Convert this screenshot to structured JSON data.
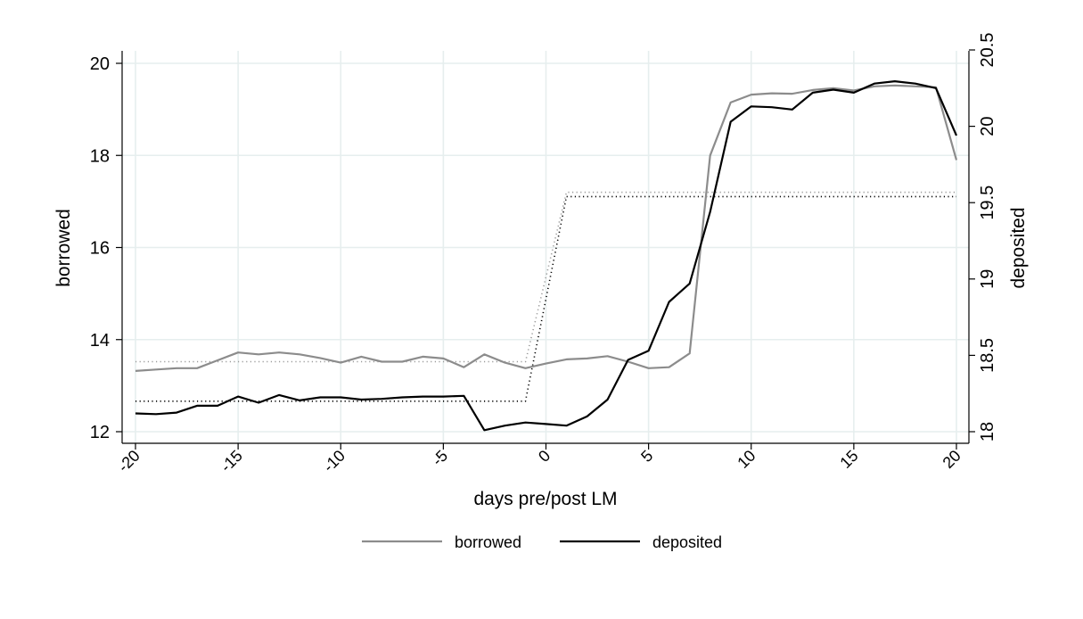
{
  "chart_data": {
    "type": "line",
    "title": "",
    "xlabel": "days pre/post LM",
    "ylabel_left": "borrowed",
    "ylabel_right": "deposited",
    "xlim": [
      -20,
      20
    ],
    "ylim_left": [
      12,
      20
    ],
    "ylim_right": [
      18,
      20.5
    ],
    "x_ticks": [
      -20,
      -15,
      -10,
      -5,
      0,
      5,
      10,
      15,
      20
    ],
    "x_tick_labels": [
      "-20",
      "-15",
      "-10",
      "-5",
      "0",
      "5",
      "10",
      "15",
      "20"
    ],
    "y_left_ticks": [
      12,
      14,
      16,
      18,
      20
    ],
    "y_left_tick_labels": [
      "12",
      "14",
      "16",
      "18",
      "20"
    ],
    "y_right_ticks": [
      18,
      18.5,
      19,
      19.5,
      20,
      20.5
    ],
    "y_right_tick_labels": [
      "18",
      "18.5",
      "19",
      "19.5",
      "20",
      "20.5"
    ],
    "grid": true,
    "legend_position": "bottom",
    "x": [
      -20,
      -19,
      -18,
      -17,
      -16,
      -15,
      -14,
      -13,
      -12,
      -11,
      -10,
      -9,
      -8,
      -7,
      -6,
      -5,
      -4,
      -3,
      -2,
      -1,
      0,
      1,
      2,
      3,
      4,
      5,
      6,
      7,
      8,
      9,
      10,
      11,
      12,
      13,
      14,
      15,
      16,
      17,
      18,
      19,
      20
    ],
    "series": [
      {
        "name": "borrowed",
        "axis": "left",
        "style": "solid",
        "color": "#8c8c8c",
        "values": [
          13.32,
          13.35,
          13.38,
          13.38,
          13.55,
          13.72,
          13.68,
          13.72,
          13.68,
          13.6,
          13.5,
          13.63,
          13.52,
          13.52,
          13.63,
          13.59,
          13.4,
          13.68,
          13.5,
          13.38,
          13.48,
          13.57,
          13.59,
          13.64,
          13.52,
          13.38,
          13.4,
          13.7,
          18.0,
          19.15,
          19.32,
          19.35,
          19.34,
          19.42,
          19.46,
          19.41,
          19.5,
          19.52,
          19.5,
          19.48,
          17.9
        ]
      },
      {
        "name": "deposited",
        "axis": "right",
        "style": "solid",
        "color": "#000000",
        "values": [
          18.12,
          18.115,
          18.125,
          18.17,
          18.17,
          18.23,
          18.19,
          18.24,
          18.205,
          18.225,
          18.225,
          18.21,
          18.215,
          18.225,
          18.23,
          18.23,
          18.235,
          18.01,
          18.04,
          18.06,
          18.05,
          18.04,
          18.1,
          18.21,
          18.47,
          18.53,
          18.85,
          18.97,
          19.44,
          20.03,
          20.13,
          20.125,
          20.11,
          20.22,
          20.24,
          20.22,
          20.28,
          20.295,
          20.28,
          20.25,
          19.94
        ]
      },
      {
        "name": "",
        "axis": "left",
        "style": "dotted",
        "color": "#9a9a9a",
        "values": [
          13.52,
          13.52,
          13.52,
          13.52,
          13.52,
          13.52,
          13.52,
          13.52,
          13.52,
          13.52,
          13.52,
          13.52,
          13.52,
          13.52,
          13.52,
          13.52,
          13.52,
          13.52,
          13.52,
          13.52,
          15.36,
          17.2,
          17.2,
          17.2,
          17.2,
          17.2,
          17.2,
          17.2,
          17.2,
          17.2,
          17.2,
          17.2,
          17.2,
          17.2,
          17.2,
          17.2,
          17.2,
          17.2,
          17.2,
          17.2,
          17.2
        ]
      },
      {
        "name": "",
        "axis": "right",
        "style": "dotted",
        "color": "#000000",
        "values": [
          18.2,
          18.2,
          18.2,
          18.2,
          18.2,
          18.2,
          18.2,
          18.2,
          18.2,
          18.2,
          18.2,
          18.2,
          18.2,
          18.2,
          18.2,
          18.2,
          18.2,
          18.2,
          18.2,
          18.2,
          18.87,
          19.54,
          19.54,
          19.54,
          19.54,
          19.54,
          19.54,
          19.54,
          19.54,
          19.54,
          19.54,
          19.54,
          19.54,
          19.54,
          19.54,
          19.54,
          19.54,
          19.54,
          19.54,
          19.54,
          19.54
        ]
      }
    ],
    "legend": [
      {
        "label": "borrowed",
        "color": "#8c8c8c"
      },
      {
        "label": "deposited",
        "color": "#000000"
      }
    ]
  }
}
